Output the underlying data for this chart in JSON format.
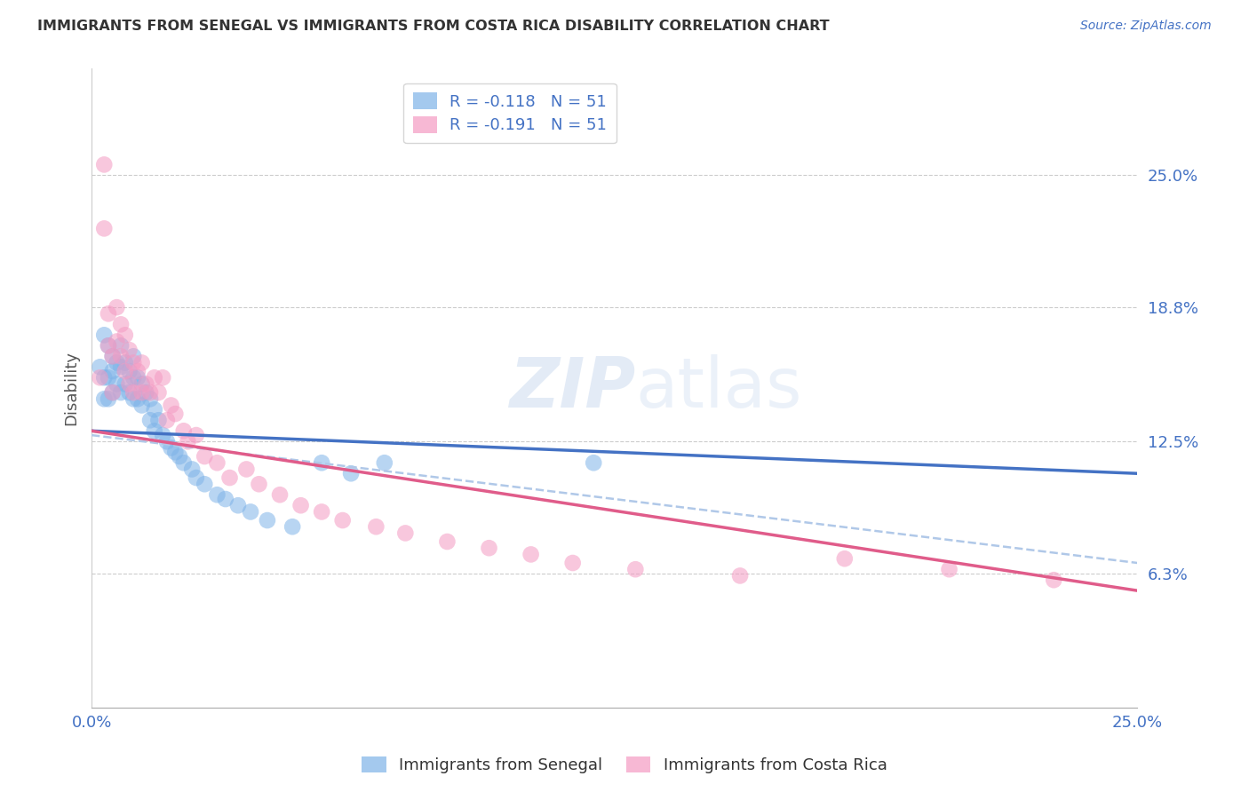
{
  "title": "IMMIGRANTS FROM SENEGAL VS IMMIGRANTS FROM COSTA RICA DISABILITY CORRELATION CHART",
  "source": "Source: ZipAtlas.com",
  "ylabel": "Disability",
  "ytick_labels": [
    "25.0%",
    "18.8%",
    "12.5%",
    "6.3%"
  ],
  "ytick_values": [
    0.25,
    0.188,
    0.125,
    0.063
  ],
  "xlim": [
    0.0,
    0.25
  ],
  "ylim": [
    0.0,
    0.3
  ],
  "senegal_color": "#7eb3e8",
  "costarica_color": "#f49ac2",
  "senegal_line_color": "#4472c4",
  "costarica_line_color": "#e05c8a",
  "dashed_line_color": "#b0c8e8",
  "legend_label_1": "R = -0.118   N = 51",
  "legend_label_2": "R = -0.191   N = 51",
  "bottom_legend_1": "Immigrants from Senegal",
  "bottom_legend_2": "Immigrants from Costa Rica",
  "senegal_x": [
    0.002,
    0.003,
    0.003,
    0.003,
    0.004,
    0.004,
    0.004,
    0.005,
    0.005,
    0.005,
    0.006,
    0.006,
    0.007,
    0.007,
    0.007,
    0.008,
    0.008,
    0.009,
    0.009,
    0.01,
    0.01,
    0.01,
    0.011,
    0.011,
    0.012,
    0.012,
    0.013,
    0.014,
    0.014,
    0.015,
    0.015,
    0.016,
    0.017,
    0.018,
    0.019,
    0.02,
    0.021,
    0.022,
    0.024,
    0.025,
    0.027,
    0.03,
    0.032,
    0.035,
    0.038,
    0.042,
    0.048,
    0.055,
    0.062,
    0.07,
    0.12
  ],
  "senegal_y": [
    0.16,
    0.175,
    0.155,
    0.145,
    0.17,
    0.155,
    0.145,
    0.165,
    0.158,
    0.148,
    0.162,
    0.152,
    0.17,
    0.16,
    0.148,
    0.162,
    0.152,
    0.158,
    0.148,
    0.165,
    0.155,
    0.145,
    0.155,
    0.145,
    0.152,
    0.142,
    0.148,
    0.145,
    0.135,
    0.14,
    0.13,
    0.135,
    0.128,
    0.125,
    0.122,
    0.12,
    0.118,
    0.115,
    0.112,
    0.108,
    0.105,
    0.1,
    0.098,
    0.095,
    0.092,
    0.088,
    0.085,
    0.115,
    0.11,
    0.115,
    0.115
  ],
  "costarica_x": [
    0.002,
    0.003,
    0.003,
    0.004,
    0.004,
    0.005,
    0.005,
    0.006,
    0.006,
    0.007,
    0.007,
    0.008,
    0.008,
    0.009,
    0.009,
    0.01,
    0.01,
    0.011,
    0.012,
    0.012,
    0.013,
    0.014,
    0.015,
    0.016,
    0.017,
    0.018,
    0.019,
    0.02,
    0.022,
    0.023,
    0.025,
    0.027,
    0.03,
    0.033,
    0.037,
    0.04,
    0.045,
    0.05,
    0.055,
    0.06,
    0.068,
    0.075,
    0.085,
    0.095,
    0.105,
    0.115,
    0.13,
    0.155,
    0.18,
    0.205,
    0.23
  ],
  "costarica_y": [
    0.155,
    0.255,
    0.225,
    0.185,
    0.17,
    0.165,
    0.148,
    0.188,
    0.172,
    0.18,
    0.165,
    0.175,
    0.158,
    0.168,
    0.152,
    0.162,
    0.148,
    0.158,
    0.162,
    0.148,
    0.152,
    0.148,
    0.155,
    0.148,
    0.155,
    0.135,
    0.142,
    0.138,
    0.13,
    0.125,
    0.128,
    0.118,
    0.115,
    0.108,
    0.112,
    0.105,
    0.1,
    0.095,
    0.092,
    0.088,
    0.085,
    0.082,
    0.078,
    0.075,
    0.072,
    0.068,
    0.065,
    0.062,
    0.07,
    0.065,
    0.06
  ]
}
